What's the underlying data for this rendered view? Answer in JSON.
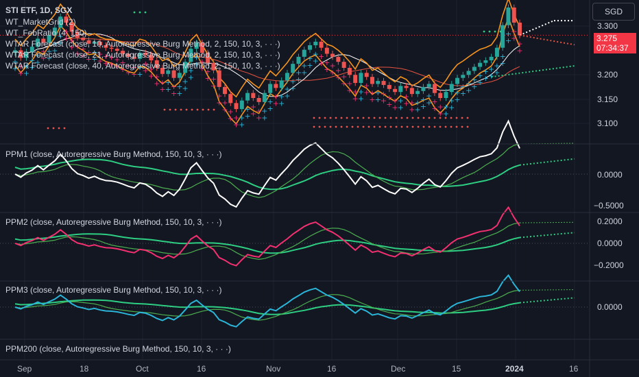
{
  "header": {
    "symbol_line": "STI ETF, 1D, SGX",
    "indicators": [
      "WT_MarketGrid (2)",
      "WT_FebRatio (4, 150)",
      "WTAR Forecast (close, 10, Autoregressive Burg Method, 2, 150, 10, 3, · · ·)",
      "WTAR Forecast (close, 21, Autoregressive Burg Method, 2, 150, 10, 3, · · ·)",
      "WTAR Forecast (close, 40, Autoregressive Burg Method, 2, 150, 10, 3, · · ·)"
    ]
  },
  "currency_button": "SGD",
  "last_price": {
    "value": "3.275",
    "countdown": "07:34:37"
  },
  "colors": {
    "bg": "#131722",
    "up": "#26a69a",
    "down": "#ef5350",
    "pink": "#f23070",
    "cyan": "#2bb5d8",
    "green": "#2ecf83",
    "orange": "#f7941d",
    "tag": "#f23645"
  },
  "panes": [
    {
      "label": "PPM1 (close, Autoregressive Burg Method, 150, 10, 3, · · ·)",
      "ticks": [
        "0.0000",
        "−0.5000"
      ]
    },
    {
      "label": "PPM2 (close, Autoregressive Burg Method, 150, 10, 3, · · ·)",
      "ticks": [
        "0.2000",
        "0.0000",
        "−0.2000"
      ]
    },
    {
      "label": "PPM3 (close, Autoregressive Burg Method, 150, 10, 3, · · ·)",
      "ticks": [
        "0.0000"
      ]
    },
    {
      "label": "PPM200 (close, Autoregressive Burg Method, 150, 10, 3, · · ·)",
      "ticks": []
    }
  ],
  "chart_data": {
    "type": "candlestick",
    "price_axis": {
      "ticks": [
        "3.300",
        "3.250",
        "3.200",
        "3.150",
        "3.100"
      ],
      "ylim": [
        3.075,
        3.345
      ]
    },
    "x_axis_ticks": [
      "Sep",
      "18",
      "Oct",
      "16",
      "Nov",
      "16",
      "Dec",
      "15",
      "2024",
      "16"
    ],
    "close": [
      3.245,
      3.23,
      3.242,
      3.252,
      3.268,
      3.26,
      3.275,
      3.29,
      3.312,
      3.3,
      3.282,
      3.27,
      3.265,
      3.258,
      3.262,
      3.255,
      3.25,
      3.248,
      3.244,
      3.238,
      3.232,
      3.228,
      3.24,
      3.236,
      3.225,
      3.21,
      3.198,
      3.205,
      3.19,
      3.2,
      3.222,
      3.248,
      3.26,
      3.24,
      3.22,
      3.205,
      3.172,
      3.158,
      3.14,
      3.128,
      3.145,
      3.16,
      3.15,
      3.142,
      3.16,
      3.178,
      3.17,
      3.185,
      3.2,
      3.218,
      3.232,
      3.246,
      3.255,
      3.262,
      3.25,
      3.238,
      3.232,
      3.222,
      3.21,
      3.196,
      3.18,
      3.2,
      3.192,
      3.178,
      3.184,
      3.176,
      3.168,
      3.162,
      3.174,
      3.17,
      3.158,
      3.164,
      3.172,
      3.178,
      3.16,
      3.15,
      3.162,
      3.178,
      3.19,
      3.196,
      3.204,
      3.212,
      3.22,
      3.225,
      3.232,
      3.25,
      3.295,
      3.33,
      3.3,
      3.275
    ]
  }
}
